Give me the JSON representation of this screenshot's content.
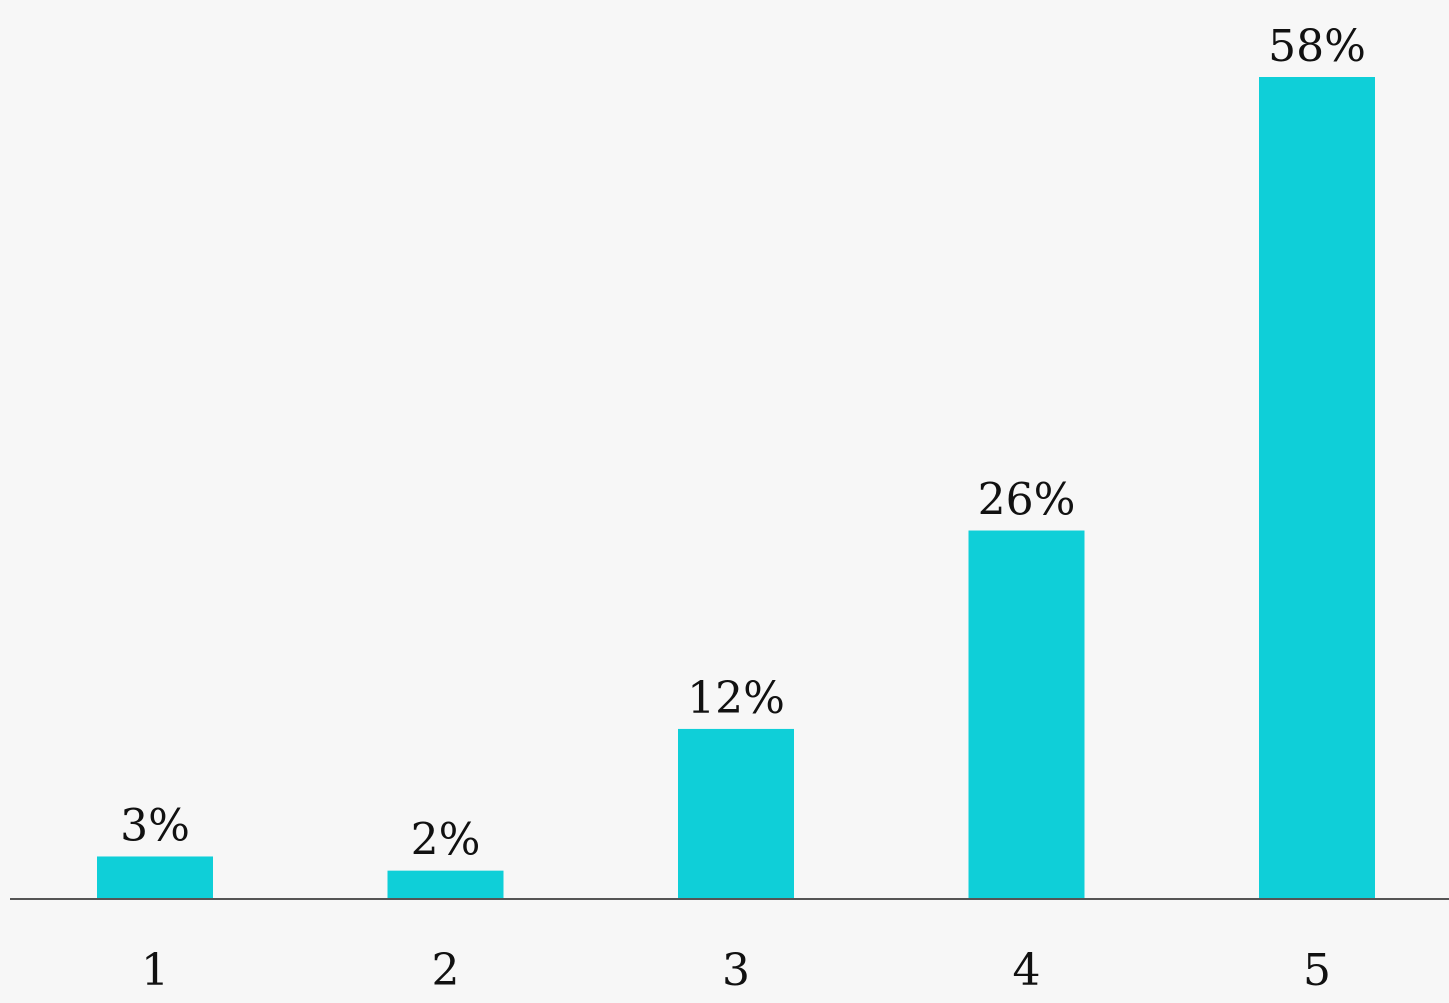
{
  "chart_data": {
    "type": "bar",
    "categories": [
      "1",
      "2",
      "3",
      "4",
      "5"
    ],
    "values": [
      3,
      2,
      12,
      26,
      58
    ],
    "data_labels": [
      "3%",
      "2%",
      "12%",
      "26%",
      "58%"
    ],
    "ylim": [
      0,
      60
    ],
    "grid": false,
    "legend": "none",
    "bar_color": "#0fcfd8",
    "axis_color": "#555555"
  }
}
